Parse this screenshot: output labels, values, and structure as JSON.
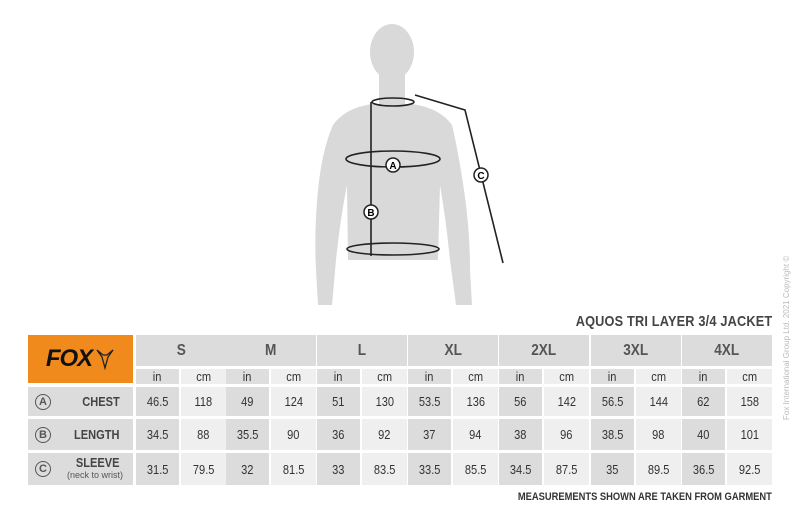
{
  "product_title": "AQUOS TRI LAYER 3/4 JACKET",
  "brand": "FOX",
  "brand_color": "#f08a1d",
  "markers": {
    "chest": "A",
    "length": "B",
    "sleeve": "C"
  },
  "sizes": [
    "S",
    "M",
    "L",
    "XL",
    "2XL",
    "3XL",
    "4XL"
  ],
  "units": [
    "in",
    "cm"
  ],
  "rows": [
    {
      "marker": "A",
      "label": "CHEST",
      "sub": "",
      "values": [
        [
          "46.5",
          "118"
        ],
        [
          "49",
          "124"
        ],
        [
          "51",
          "130"
        ],
        [
          "53.5",
          "136"
        ],
        [
          "56",
          "142"
        ],
        [
          "56.5",
          "144"
        ],
        [
          "62",
          "158"
        ]
      ]
    },
    {
      "marker": "B",
      "label": "LENGTH",
      "sub": "",
      "values": [
        [
          "34.5",
          "88"
        ],
        [
          "35.5",
          "90"
        ],
        [
          "36",
          "92"
        ],
        [
          "37",
          "94"
        ],
        [
          "38",
          "96"
        ],
        [
          "38.5",
          "98"
        ],
        [
          "40",
          "101"
        ]
      ]
    },
    {
      "marker": "C",
      "label": "SLEEVE",
      "sub": "(neck to wrist)",
      "values": [
        [
          "31.5",
          "79.5"
        ],
        [
          "32",
          "81.5"
        ],
        [
          "33",
          "83.5"
        ],
        [
          "33.5",
          "85.5"
        ],
        [
          "34.5",
          "87.5"
        ],
        [
          "35",
          "89.5"
        ],
        [
          "36.5",
          "92.5"
        ]
      ]
    }
  ],
  "footnote": "MEASUREMENTS SHOWN ARE TAKEN FROM GARMENT",
  "copyright": "Fox International Group Ltd. 2021 Copyright ©"
}
